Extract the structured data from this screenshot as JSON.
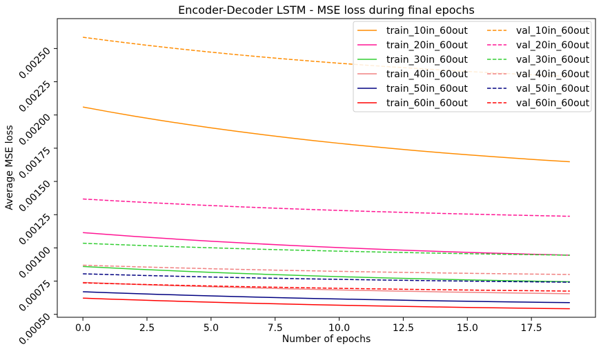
{
  "chart_data": {
    "type": "line",
    "title": "Encoder-Decoder LSTM - MSE loss during final epochs",
    "xlabel": "Number of epochs",
    "ylabel": "Average MSE loss",
    "xlim": [
      -1.0,
      20.0
    ],
    "ylim": [
      0.000478,
      0.002725
    ],
    "xticks": [
      0.0,
      2.5,
      5.0,
      7.5,
      10.0,
      12.5,
      15.0,
      17.5
    ],
    "xtick_labels": [
      "0.0",
      "2.5",
      "5.0",
      "7.5",
      "10.0",
      "12.5",
      "15.0",
      "17.5"
    ],
    "yticks": [
      0.0005,
      0.00075,
      0.001,
      0.00125,
      0.0015,
      0.00175,
      0.002,
      0.00225,
      0.0025
    ],
    "ytick_labels": [
      "0.00050",
      "0.00075",
      "0.00100",
      "0.00125",
      "0.00150",
      "0.00175",
      "0.00200",
      "0.00225",
      "0.00250"
    ],
    "grid": false,
    "legend_position": "top-right",
    "legend_columns": 2,
    "x": [
      0,
      19
    ],
    "series": [
      {
        "name": "train_10in_60out",
        "color": "#ff8c00",
        "style": "solid",
        "start": 0.00206,
        "end": 0.001648
      },
      {
        "name": "train_20in_60out",
        "color": "#ff1493",
        "style": "solid",
        "start": 0.001115,
        "end": 0.000945
      },
      {
        "name": "train_30in_60out",
        "color": "#32cd32",
        "style": "solid",
        "start": 0.00086,
        "end": 0.000745
      },
      {
        "name": "train_40in_60out",
        "color": "#f08080",
        "style": "solid",
        "start": 0.00074,
        "end": 0.000655
      },
      {
        "name": "train_50in_60out",
        "color": "#000080",
        "style": "solid",
        "start": 0.00067,
        "end": 0.000588
      },
      {
        "name": "train_60in_60out",
        "color": "#ff0000",
        "style": "solid",
        "start": 0.000622,
        "end": 0.000542
      },
      {
        "name": "val_10in_60out",
        "color": "#ff8c00",
        "style": "dashed",
        "start": 0.002585,
        "end": 0.00229
      },
      {
        "name": "val_20in_60out",
        "color": "#ff1493",
        "style": "dashed",
        "start": 0.001368,
        "end": 0.001238
      },
      {
        "name": "val_30in_60out",
        "color": "#32cd32",
        "style": "dashed",
        "start": 0.001035,
        "end": 0.000945
      },
      {
        "name": "val_40in_60out",
        "color": "#f08080",
        "style": "dashed",
        "start": 0.00087,
        "end": 0.0008
      },
      {
        "name": "val_50in_60out",
        "color": "#000080",
        "style": "dashed",
        "start": 0.000805,
        "end": 0.000742
      },
      {
        "name": "val_60in_60out",
        "color": "#ff0000",
        "style": "dashed",
        "start": 0.000737,
        "end": 0.000675
      }
    ]
  }
}
